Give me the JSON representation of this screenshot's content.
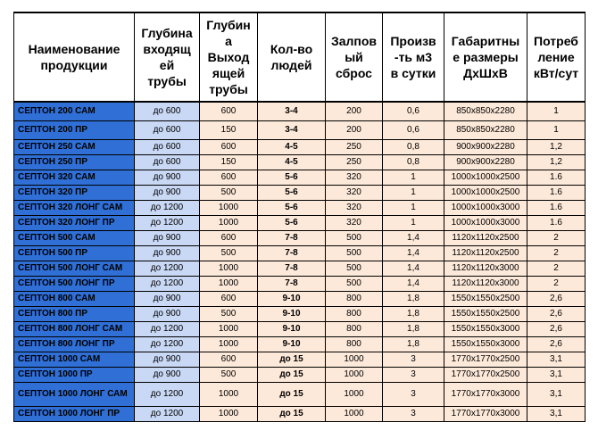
{
  "headers": [
    "Наименование продукции",
    "Глубина входящей трубы",
    "Глубина Выходящей трубы",
    "Кол-во людей",
    "Залповый сброс",
    "Произв-ть м3 в сутки",
    "Габаритные размеры ДхШхВ",
    "Потребление кВт/сут"
  ],
  "header_lines": [
    [
      "Наименование",
      "продукции"
    ],
    [
      "Глубина",
      "входящ",
      "ей",
      "трубы"
    ],
    [
      "Глубин",
      "а",
      "Выход",
      "ящей",
      "трубы"
    ],
    [
      "Кол-во",
      "людей"
    ],
    [
      "Залпов",
      "ый",
      "сброс"
    ],
    [
      "Произв",
      "-ть м3",
      "в сутки"
    ],
    [
      "Габаритны",
      "е размеры",
      "ДхШхВ"
    ],
    [
      "Потреб",
      "ление",
      "кВт/сут"
    ]
  ],
  "rows": [
    {
      "name": "СЕПТОН 200 САМ",
      "in": "до 600",
      "out": "600",
      "people": "3-4",
      "salvo": "200",
      "capacity": "0,6",
      "size": "850x850x2280",
      "power": "1"
    },
    {
      "name": "СЕПТОН 200 ПР",
      "in": "до 600",
      "out": "150",
      "people": "3-4",
      "salvo": "200",
      "capacity": "0,6",
      "size": "850x850x2280",
      "power": "1"
    },
    {
      "name": "СЕПТОН 250 САМ",
      "in": "до 600",
      "out": "600",
      "people": "4-5",
      "salvo": "250",
      "capacity": "0,8",
      "size": "900x900x2280",
      "power": "1,2"
    },
    {
      "name": "СЕПТОН 250 ПР",
      "in": "до 600",
      "out": "150",
      "people": "4-5",
      "salvo": "250",
      "capacity": "0,8",
      "size": "900x900x2280",
      "power": "1,2"
    },
    {
      "name": "СЕПТОН 320 САМ",
      "in": "до 900",
      "out": "600",
      "people": "5-6",
      "salvo": "320",
      "capacity": "1",
      "size": "1000x1000x2500",
      "power": "1.6"
    },
    {
      "name": "СЕПТОН 320 ПР",
      "in": "до 900",
      "out": "500",
      "people": "5-6",
      "salvo": "320",
      "capacity": "1",
      "size": "1000x1000x2500",
      "power": "1.6"
    },
    {
      "name": "СЕПТОН 320 ЛОНГ САМ",
      "in": "до 1200",
      "out": "1000",
      "people": "5-6",
      "salvo": "320",
      "capacity": "1",
      "size": "1000x1000x3000",
      "power": "1.6"
    },
    {
      "name": "СЕПТОН 320 ЛОНГ ПР",
      "in": "до 1200",
      "out": "1000",
      "people": "5-6",
      "salvo": "320",
      "capacity": "1",
      "size": "1000x1000x3000",
      "power": "1.6"
    },
    {
      "name": "СЕПТОН 500 САМ",
      "in": "до 900",
      "out": "600",
      "people": "7-8",
      "salvo": "500",
      "capacity": "1,4",
      "size": "1120x1120x2500",
      "power": "2"
    },
    {
      "name": "СЕПТОН 500 ПР",
      "in": "до 900",
      "out": "500",
      "people": "7-8",
      "salvo": "500",
      "capacity": "1,4",
      "size": "1120x1120x2500",
      "power": "2"
    },
    {
      "name": "СЕПТОН 500 ЛОНГ САМ",
      "in": "до 1200",
      "out": "1000",
      "people": "7-8",
      "salvo": "500",
      "capacity": "1,4",
      "size": "1120x1120x3000",
      "power": "2"
    },
    {
      "name": "СЕПТОН 500 ЛОНГ ПР",
      "in": "до 1200",
      "out": "1000",
      "people": "7-8",
      "salvo": "500",
      "capacity": "1,4",
      "size": "1120x1120x3000",
      "power": "2"
    },
    {
      "name": "СЕПТОН 800 САМ",
      "in": "до 900",
      "out": "600",
      "people": "9-10",
      "salvo": "800",
      "capacity": "1,8",
      "size": "1550x1550x2500",
      "power": "2,6"
    },
    {
      "name": "СЕПТОН 800 ПР",
      "in": "до 900",
      "out": "500",
      "people": "9-10",
      "salvo": "800",
      "capacity": "1,8",
      "size": "1550x1550x2500",
      "power": "2,6"
    },
    {
      "name": "СЕПТОН 800 ЛОНГ САМ",
      "in": "до 1200",
      "out": "1000",
      "people": "9-10",
      "salvo": "800",
      "capacity": "1,8",
      "size": "1550x1550x3000",
      "power": "2,6"
    },
    {
      "name": "СЕПТОН 800 ЛОНГ ПР",
      "in": "до 1200",
      "out": "1000",
      "people": "9-10",
      "salvo": "800",
      "capacity": "1,8",
      "size": "1550x1550x3000",
      "power": "2,6"
    },
    {
      "name": "СЕПТОН 1000 САМ",
      "in": "до 900",
      "out": "600",
      "people": "до 15",
      "salvo": "1000",
      "capacity": "3",
      "size": "1770x1770x2500",
      "power": "3,1"
    },
    {
      "name": "СЕПТОН 1000 ПР",
      "in": "до 900",
      "out": "500",
      "people": "до 15",
      "salvo": "1000",
      "capacity": "3",
      "size": "1770x1770x2500",
      "power": "3,1"
    },
    {
      "name": "СЕПТОН 1000 ЛОНГ САМ",
      "in": "до 1200",
      "out": "1000",
      "people": "до 15",
      "salvo": "1000",
      "capacity": "3",
      "size": "1770x1770x3000",
      "power": "3,1"
    },
    {
      "name": "СЕПТОН 1000 ЛОНГ ПР",
      "in": "до 1200",
      "out": "1000",
      "people": "до 15",
      "salvo": "1000",
      "capacity": "3",
      "size": "1770x1770x3000",
      "power": "3,1"
    }
  ],
  "colors": {
    "name_fill": "#2f6fd6",
    "depth_fill": "#c9d8f5",
    "body_fill": "#fde9d9"
  }
}
